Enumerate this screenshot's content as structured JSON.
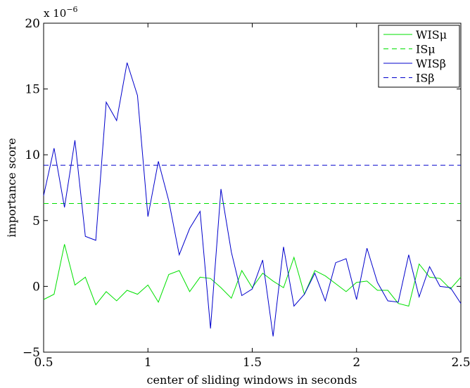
{
  "chart_data": {
    "type": "line",
    "xlabel": "center of sliding windows in seconds",
    "ylabel": "importance score",
    "exponent_label": "x 10",
    "exponent_power": "−6",
    "xlim": [
      0.5,
      2.5
    ],
    "ylim": [
      -5,
      20
    ],
    "x_ticks": [
      0.5,
      1,
      1.5,
      2,
      2.5
    ],
    "x_tick_labels": [
      "0.5",
      "1",
      "1.5",
      "2",
      "2.5"
    ],
    "y_ticks": [
      -5,
      0,
      5,
      10,
      15,
      20
    ],
    "y_tick_labels": [
      "−5",
      "0",
      "5",
      "10",
      "15",
      "20"
    ],
    "grid": false,
    "legend_position": "top-right",
    "x": [
      0.5,
      0.55,
      0.6,
      0.65,
      0.7,
      0.75,
      0.8,
      0.85,
      0.9,
      0.95,
      1.0,
      1.05,
      1.1,
      1.15,
      1.2,
      1.25,
      1.3,
      1.35,
      1.4,
      1.45,
      1.5,
      1.55,
      1.6,
      1.65,
      1.7,
      1.75,
      1.8,
      1.85,
      1.9,
      1.95,
      2.0,
      2.05,
      2.1,
      2.15,
      2.2,
      2.25,
      2.3,
      2.35,
      2.4,
      2.45,
      2.5
    ],
    "series": [
      {
        "name": "WISμ",
        "style": "solid",
        "color": "#00e000",
        "values": [
          -1.0,
          -0.6,
          3.2,
          0.1,
          0.7,
          -1.4,
          -0.4,
          -1.1,
          -0.3,
          -0.6,
          0.1,
          -1.2,
          0.9,
          1.2,
          -0.4,
          0.7,
          0.6,
          -0.1,
          -0.9,
          1.2,
          -0.1,
          1.0,
          0.4,
          -0.1,
          2.2,
          -0.6,
          1.2,
          0.8,
          0.2,
          -0.4,
          0.3,
          0.4,
          -0.3,
          -0.3,
          -1.3,
          -1.5,
          1.7,
          0.7,
          0.6,
          -0.2,
          0.7
        ]
      },
      {
        "name": "ISμ",
        "style": "dashed",
        "color": "#00e000",
        "constant": 6.3
      },
      {
        "name": "WISβ",
        "style": "solid",
        "color": "#0000cc",
        "values": [
          6.9,
          10.5,
          6.0,
          11.1,
          3.8,
          3.5,
          14.0,
          12.6,
          17.0,
          14.5,
          5.3,
          9.5,
          6.5,
          2.4,
          4.4,
          5.7,
          -3.2,
          7.4,
          2.6,
          -0.7,
          -0.2,
          2.0,
          -3.8,
          3.0,
          -1.5,
          -0.6,
          1.0,
          -1.1,
          1.8,
          2.1,
          -1.0,
          2.9,
          0.3,
          -1.1,
          -1.2,
          2.4,
          -0.8,
          1.5,
          0.0,
          -0.1,
          -1.3
        ]
      },
      {
        "name": "ISβ",
        "style": "dashed",
        "color": "#0000cc",
        "constant": 9.2
      }
    ]
  }
}
